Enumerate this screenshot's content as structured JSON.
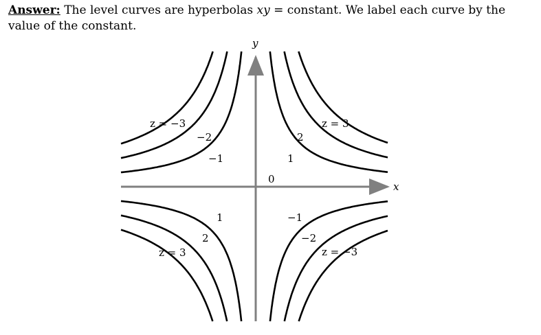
{
  "answer": {
    "lead": "Answer:",
    "text_before": " The level curves are hyperbolas ",
    "math_xy": "xy",
    "text_eq": " = constant. We label each curve by the value of the constant."
  },
  "chart_data": {
    "type": "line",
    "function": "z = xy",
    "levels": [
      -3,
      -2,
      -1,
      0,
      1,
      2,
      3
    ],
    "xlabel": "x",
    "ylabel": "y",
    "curve_labels": [
      {
        "text": "z = −3",
        "level": -3,
        "quadrant": "top-left"
      },
      {
        "text": "−2",
        "level": -2,
        "quadrant": "top-left"
      },
      {
        "text": "−1",
        "level": -1,
        "quadrant": "top-left"
      },
      {
        "text": "z = 3",
        "level": 3,
        "quadrant": "top-right"
      },
      {
        "text": "2",
        "level": 2,
        "quadrant": "top-right"
      },
      {
        "text": "1",
        "level": 1,
        "quadrant": "top-right"
      },
      {
        "text": "0",
        "level": 0,
        "quadrant": "origin"
      },
      {
        "text": "1",
        "level": 1,
        "quadrant": "bottom-left"
      },
      {
        "text": "2",
        "level": 2,
        "quadrant": "bottom-left"
      },
      {
        "text": "z = 3",
        "level": 3,
        "quadrant": "bottom-left"
      },
      {
        "text": "−1",
        "level": -1,
        "quadrant": "bottom-right"
      },
      {
        "text": "−2",
        "level": -2,
        "quadrant": "bottom-right"
      },
      {
        "text": "z = −3",
        "level": -3,
        "quadrant": "bottom-right"
      }
    ],
    "colors": {
      "curve": "#000000",
      "axis": "#808080"
    }
  }
}
